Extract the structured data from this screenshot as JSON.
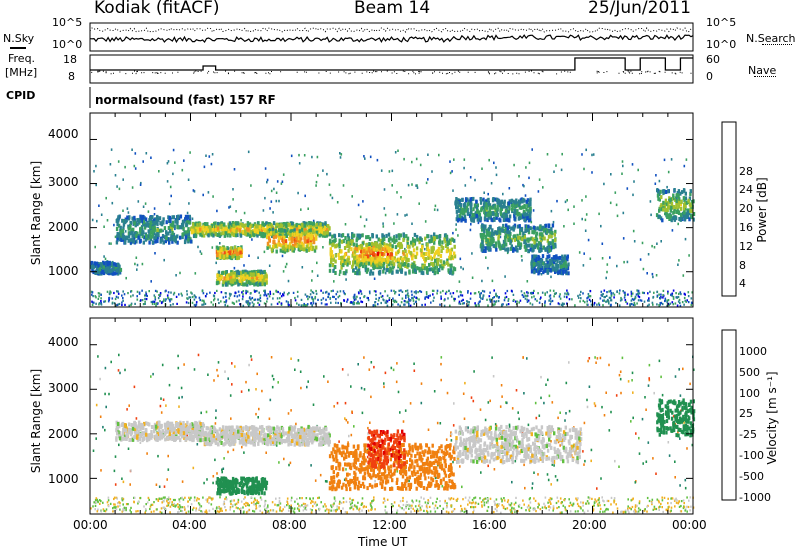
{
  "header": {
    "station": "Kodiak (fitACF)",
    "beam": "Beam 14",
    "date": "25/Jun/2011"
  },
  "top_panels": {
    "nsky_label": "N.Sky",
    "nsearch_label": "N.Search",
    "nsky_ticks": [
      "10^5",
      "10^0"
    ],
    "nsearch_ticks": [
      "10^5",
      "10^0"
    ],
    "freq_label_line1": "Freq.",
    "freq_label_line2": "[MHz]",
    "freq_ticks": [
      "18",
      "8"
    ],
    "nave_label": "Nave",
    "nave_ticks": [
      "60",
      "0"
    ],
    "cpid_label": "CPID",
    "cpid_text": "normalsound (fast) 157 RF"
  },
  "chart_data": [
    {
      "type": "heatmap",
      "name": "power-panel",
      "ylabel": "Slant Range [km]",
      "ylim": [
        200,
        4600
      ],
      "yticks": [
        "4000",
        "3000",
        "2000",
        "1000"
      ],
      "xlim": [
        "00:00",
        "24:00"
      ],
      "colorbar": {
        "label": "Power [dB]",
        "ticks": [
          "28",
          "24",
          "20",
          "16",
          "12",
          "8",
          "4"
        ],
        "colors": [
          "#0000e0",
          "#1050c0",
          "#2a8090",
          "#3aa060",
          "#a0c030",
          "#f0d020",
          "#f09020",
          "#f05010",
          "#e00000"
        ]
      },
      "regions": [
        {
          "t": [
            0.0,
            1.2
          ],
          "range": [
            1000,
            1250
          ],
          "power": 10
        },
        {
          "t": [
            1.0,
            4.0
          ],
          "range": [
            1700,
            2300
          ],
          "power": 12
        },
        {
          "t": [
            4.0,
            9.5
          ],
          "range": [
            1850,
            2150
          ],
          "power": 22
        },
        {
          "t": [
            5.0,
            6.0
          ],
          "range": [
            1350,
            1600
          ],
          "power": 28
        },
        {
          "t": [
            5.0,
            7.0
          ],
          "range": [
            750,
            1050
          ],
          "power": 22
        },
        {
          "t": [
            7.0,
            9.0
          ],
          "range": [
            1500,
            2000
          ],
          "power": 26
        },
        {
          "t": [
            9.5,
            14.5
          ],
          "range": [
            1000,
            1900
          ],
          "power": 20
        },
        {
          "t": [
            10.5,
            12.0
          ],
          "range": [
            1200,
            1700
          ],
          "power": 28
        },
        {
          "t": [
            14.5,
            17.5
          ],
          "range": [
            2200,
            2700
          ],
          "power": 12
        },
        {
          "t": [
            15.5,
            18.5
          ],
          "range": [
            1500,
            2100
          ],
          "power": 14
        },
        {
          "t": [
            17.5,
            19.0
          ],
          "range": [
            1000,
            1400
          ],
          "power": 10
        },
        {
          "t": [
            22.5,
            24.0
          ],
          "range": [
            2200,
            2900
          ],
          "power": 16
        }
      ]
    },
    {
      "type": "heatmap",
      "name": "velocity-panel",
      "ylabel": "Slant Range [km]",
      "ylim": [
        200,
        4600
      ],
      "yticks": [
        "4000",
        "3000",
        "2000",
        "1000"
      ],
      "xlim": [
        "00:00",
        "24:00"
      ],
      "xticks": [
        "00:00",
        "04:00",
        "08:00",
        "12:00",
        "16:00",
        "20:00",
        "00:00"
      ],
      "xlabel": "Time UT",
      "colorbar": {
        "label": "Velocity [m s⁻¹]",
        "ticks": [
          "1000",
          "500",
          "100",
          "25",
          "-25",
          "-100",
          "-500",
          "-1000"
        ],
        "colors": [
          "#2040c0",
          "#208070",
          "#209050",
          "#60c040",
          "#c8c8c8",
          "#f0b020",
          "#f08010",
          "#f04010",
          "#e00000"
        ]
      },
      "regions": [
        {
          "t": [
            1.0,
            4.5
          ],
          "range": [
            1900,
            2300
          ],
          "vel": 0
        },
        {
          "t": [
            4.5,
            9.5
          ],
          "range": [
            1800,
            2200
          ],
          "vel": 0
        },
        {
          "t": [
            5.0,
            7.0
          ],
          "range": [
            700,
            1050
          ],
          "vel": 300
        },
        {
          "t": [
            9.5,
            14.5
          ],
          "range": [
            800,
            1800
          ],
          "vel": -300
        },
        {
          "t": [
            11.0,
            12.5
          ],
          "range": [
            1300,
            2100
          ],
          "vel": -800
        },
        {
          "t": [
            14.5,
            19.5
          ],
          "range": [
            1400,
            2200
          ],
          "vel": 0
        },
        {
          "t": [
            22.5,
            24.0
          ],
          "range": [
            2000,
            2800
          ],
          "vel": 300
        }
      ]
    }
  ]
}
